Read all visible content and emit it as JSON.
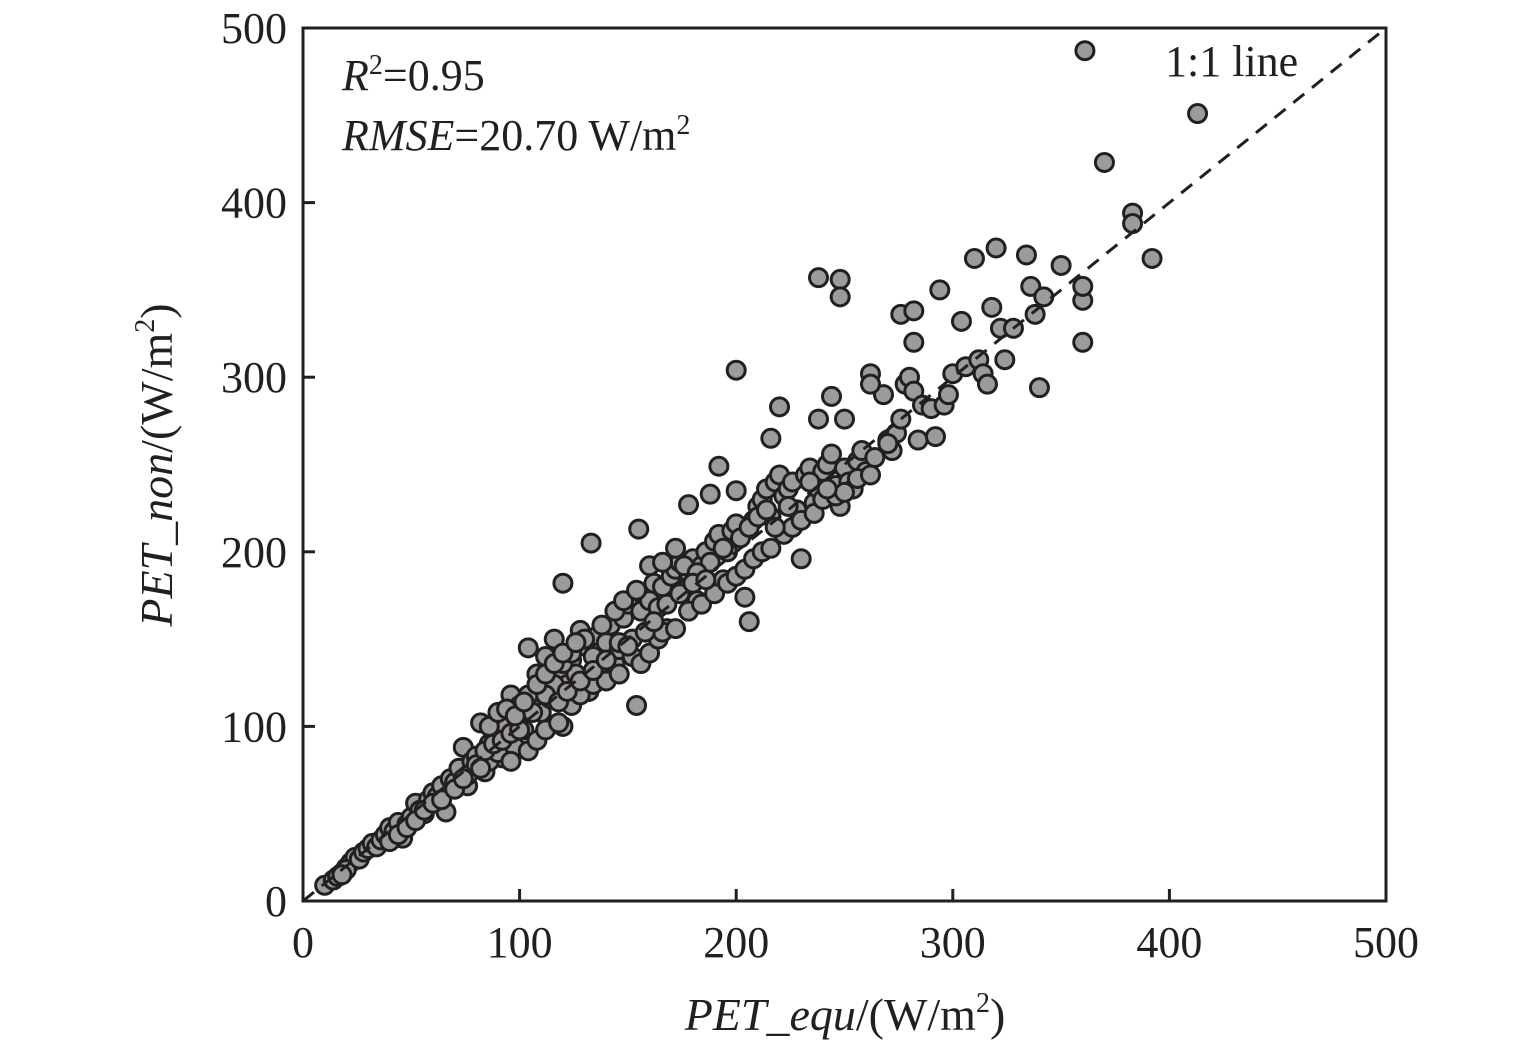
{
  "chart_data": {
    "type": "scatter",
    "x_label": {
      "var": "PET_equ",
      "unit": "/(W/m",
      "exp": "2",
      "close": ")"
    },
    "y_label": {
      "var": "PET_non",
      "unit": "/(W/m",
      "exp": "2",
      "close": ")"
    },
    "xlim": [
      0,
      500
    ],
    "ylim": [
      0,
      500
    ],
    "x_ticks": [
      0,
      100,
      200,
      300,
      400,
      500
    ],
    "y_ticks": [
      0,
      100,
      200,
      300,
      400,
      500
    ],
    "x_tick_labels": [
      "0",
      "100",
      "200",
      "300",
      "400",
      "500"
    ],
    "y_tick_labels": [
      "0",
      "100",
      "200",
      "300",
      "400",
      "500"
    ],
    "grid": false,
    "reference_line": {
      "label": "1:1 line",
      "slope": 1,
      "intercept": 0,
      "style": "dashed"
    },
    "stats": {
      "r2_var": "R",
      "r2_exp": "2",
      "r2_value": "=0.95",
      "rmse_var": "RMSE",
      "rmse_value": "=20.70 W/m",
      "rmse_exp": "2"
    },
    "marker_color": "#9b9b9b",
    "marker_edge": "#231f20",
    "points": [
      [
        10,
        9
      ],
      [
        14,
        12
      ],
      [
        16,
        14
      ],
      [
        18,
        16
      ],
      [
        20,
        19
      ],
      [
        22,
        22
      ],
      [
        24,
        25
      ],
      [
        20,
        18
      ],
      [
        18,
        15
      ],
      [
        26,
        24
      ],
      [
        28,
        28
      ],
      [
        30,
        30
      ],
      [
        32,
        33
      ],
      [
        34,
        31
      ],
      [
        36,
        35
      ],
      [
        38,
        38
      ],
      [
        40,
        42
      ],
      [
        42,
        40
      ],
      [
        44,
        45
      ],
      [
        46,
        36
      ],
      [
        48,
        44
      ],
      [
        50,
        48
      ],
      [
        52,
        56
      ],
      [
        54,
        52
      ],
      [
        56,
        50
      ],
      [
        58,
        58
      ],
      [
        60,
        62
      ],
      [
        62,
        60
      ],
      [
        64,
        66
      ],
      [
        66,
        51
      ],
      [
        68,
        70
      ],
      [
        70,
        68
      ],
      [
        72,
        76
      ],
      [
        74,
        88
      ],
      [
        76,
        66
      ],
      [
        78,
        80
      ],
      [
        80,
        83
      ],
      [
        82,
        102
      ],
      [
        84,
        74
      ],
      [
        86,
        90
      ],
      [
        88,
        96
      ],
      [
        90,
        94
      ],
      [
        92,
        82
      ],
      [
        94,
        100
      ],
      [
        96,
        118
      ],
      [
        98,
        88
      ],
      [
        100,
        104
      ],
      [
        102,
        98
      ],
      [
        104,
        145
      ],
      [
        106,
        112
      ],
      [
        108,
        120
      ],
      [
        110,
        108
      ],
      [
        112,
        126
      ],
      [
        114,
        116
      ],
      [
        116,
        150
      ],
      [
        118,
        132
      ],
      [
        120,
        100
      ],
      [
        122,
        124
      ],
      [
        124,
        138
      ],
      [
        126,
        130
      ],
      [
        128,
        155
      ],
      [
        130,
        146
      ],
      [
        132,
        120
      ],
      [
        134,
        140
      ],
      [
        136,
        152
      ],
      [
        138,
        130
      ],
      [
        140,
        148
      ],
      [
        142,
        158
      ],
      [
        144,
        136
      ],
      [
        146,
        144
      ],
      [
        148,
        162
      ],
      [
        150,
        170
      ],
      [
        152,
        150
      ],
      [
        154,
        112
      ],
      [
        156,
        166
      ],
      [
        158,
        176
      ],
      [
        160,
        172
      ],
      [
        162,
        182
      ],
      [
        164,
        168
      ],
      [
        166,
        180
      ],
      [
        168,
        156
      ],
      [
        170,
        186
      ],
      [
        172,
        190
      ],
      [
        174,
        194
      ],
      [
        176,
        178
      ],
      [
        178,
        188
      ],
      [
        180,
        196
      ],
      [
        182,
        172
      ],
      [
        184,
        192
      ],
      [
        186,
        200
      ],
      [
        188,
        194
      ],
      [
        190,
        206
      ],
      [
        192,
        210
      ],
      [
        194,
        184
      ],
      [
        196,
        200
      ],
      [
        198,
        212
      ],
      [
        200,
        216
      ],
      [
        202,
        208
      ],
      [
        204,
        174
      ],
      [
        206,
        160
      ],
      [
        208,
        218
      ],
      [
        210,
        226
      ],
      [
        212,
        230
      ],
      [
        214,
        236
      ],
      [
        216,
        220
      ],
      [
        218,
        240
      ],
      [
        220,
        244
      ],
      [
        222,
        232
      ],
      [
        224,
        236
      ],
      [
        226,
        240
      ],
      [
        228,
        224
      ],
      [
        230,
        196
      ],
      [
        232,
        244
      ],
      [
        234,
        248
      ],
      [
        236,
        228
      ],
      [
        238,
        236
      ],
      [
        240,
        246
      ],
      [
        242,
        250
      ],
      [
        244,
        256
      ],
      [
        246,
        238
      ],
      [
        248,
        226
      ],
      [
        250,
        248
      ],
      [
        252,
        240
      ],
      [
        254,
        236
      ],
      [
        256,
        252
      ],
      [
        258,
        258
      ],
      [
        260,
        246
      ],
      [
        262,
        302
      ],
      [
        264,
        254
      ],
      [
        268,
        290
      ],
      [
        270,
        264
      ],
      [
        272,
        258
      ],
      [
        274,
        268
      ],
      [
        276,
        276
      ],
      [
        278,
        296
      ],
      [
        280,
        300
      ],
      [
        282,
        292
      ],
      [
        284,
        264
      ],
      [
        286,
        284
      ],
      [
        290,
        282
      ],
      [
        292,
        266
      ],
      [
        294,
        350
      ],
      [
        296,
        284
      ],
      [
        298,
        290
      ],
      [
        300,
        302
      ],
      [
        304,
        332
      ],
      [
        306,
        306
      ],
      [
        310,
        368
      ],
      [
        312,
        310
      ],
      [
        314,
        302
      ],
      [
        316,
        296
      ],
      [
        318,
        340
      ],
      [
        320,
        374
      ],
      [
        322,
        328
      ],
      [
        324,
        310
      ],
      [
        328,
        328
      ],
      [
        334,
        370
      ],
      [
        336,
        352
      ],
      [
        338,
        336
      ],
      [
        340,
        294
      ],
      [
        342,
        346
      ],
      [
        350,
        364
      ],
      [
        360,
        344
      ],
      [
        360,
        320
      ],
      [
        360,
        352
      ],
      [
        361,
        487
      ],
      [
        370,
        423
      ],
      [
        383,
        394
      ],
      [
        383,
        388
      ],
      [
        392,
        368
      ],
      [
        413,
        451
      ],
      [
        120,
        182
      ],
      [
        133,
        205
      ],
      [
        155,
        213
      ],
      [
        178,
        227
      ],
      [
        188,
        233
      ],
      [
        192,
        249
      ],
      [
        200,
        235
      ],
      [
        200,
        304
      ],
      [
        216,
        265
      ],
      [
        220,
        283
      ],
      [
        238,
        357
      ],
      [
        238,
        276
      ],
      [
        244,
        289
      ],
      [
        248,
        356
      ],
      [
        248,
        346
      ],
      [
        250,
        276
      ],
      [
        262,
        296
      ],
      [
        276,
        336
      ],
      [
        282,
        338
      ],
      [
        282,
        320
      ],
      [
        86,
        80
      ],
      [
        90,
        85
      ],
      [
        96,
        80
      ],
      [
        104,
        86
      ],
      [
        108,
        92
      ],
      [
        112,
        98
      ],
      [
        118,
        102
      ],
      [
        124,
        112
      ],
      [
        128,
        118
      ],
      [
        134,
        124
      ],
      [
        140,
        126
      ],
      [
        146,
        130
      ],
      [
        152,
        140
      ],
      [
        156,
        136
      ],
      [
        160,
        142
      ],
      [
        164,
        150
      ],
      [
        166,
        154
      ],
      [
        172,
        156
      ],
      [
        178,
        166
      ],
      [
        184,
        170
      ],
      [
        190,
        176
      ],
      [
        196,
        182
      ],
      [
        200,
        186
      ],
      [
        204,
        190
      ],
      [
        208,
        196
      ],
      [
        212,
        200
      ],
      [
        216,
        202
      ],
      [
        222,
        210
      ],
      [
        226,
        214
      ],
      [
        230,
        218
      ],
      [
        236,
        222
      ],
      [
        240,
        230
      ],
      [
        246,
        232
      ],
      [
        250,
        234
      ],
      [
        256,
        242
      ],
      [
        262,
        244
      ],
      [
        270,
        262
      ],
      [
        104,
        118
      ],
      [
        108,
        130
      ],
      [
        112,
        140
      ],
      [
        116,
        124
      ],
      [
        120,
        136
      ],
      [
        124,
        142
      ],
      [
        130,
        150
      ],
      [
        138,
        158
      ],
      [
        144,
        166
      ],
      [
        148,
        172
      ],
      [
        154,
        178
      ],
      [
        160,
        192
      ],
      [
        166,
        194
      ],
      [
        172,
        202
      ],
      [
        176,
        192
      ],
      [
        182,
        188
      ],
      [
        194,
        202
      ],
      [
        206,
        214
      ],
      [
        210,
        220
      ],
      [
        214,
        224
      ],
      [
        218,
        214
      ],
      [
        224,
        226
      ],
      [
        234,
        240
      ],
      [
        242,
        236
      ],
      [
        100,
        112
      ],
      [
        106,
        108
      ],
      [
        112,
        118
      ],
      [
        118,
        114
      ],
      [
        122,
        120
      ],
      [
        128,
        126
      ],
      [
        134,
        132
      ],
      [
        140,
        138
      ],
      [
        146,
        148
      ],
      [
        150,
        146
      ],
      [
        158,
        154
      ],
      [
        162,
        160
      ],
      [
        168,
        170
      ],
      [
        174,
        176
      ],
      [
        180,
        182
      ],
      [
        186,
        184
      ],
      [
        40,
        34
      ],
      [
        44,
        38
      ],
      [
        48,
        42
      ],
      [
        52,
        46
      ],
      [
        56,
        52
      ],
      [
        60,
        56
      ],
      [
        64,
        58
      ],
      [
        70,
        64
      ],
      [
        76,
        72
      ],
      [
        80,
        78
      ],
      [
        84,
        86
      ],
      [
        88,
        90
      ],
      [
        92,
        92
      ],
      [
        96,
        96
      ],
      [
        100,
        98
      ],
      [
        82,
        76
      ],
      [
        74,
        70
      ],
      [
        86,
        100
      ],
      [
        90,
        108
      ],
      [
        94,
        110
      ],
      [
        98,
        106
      ],
      [
        102,
        114
      ],
      [
        108,
        124
      ],
      [
        112,
        130
      ],
      [
        116,
        136
      ],
      [
        120,
        142
      ],
      [
        126,
        148
      ]
    ]
  }
}
